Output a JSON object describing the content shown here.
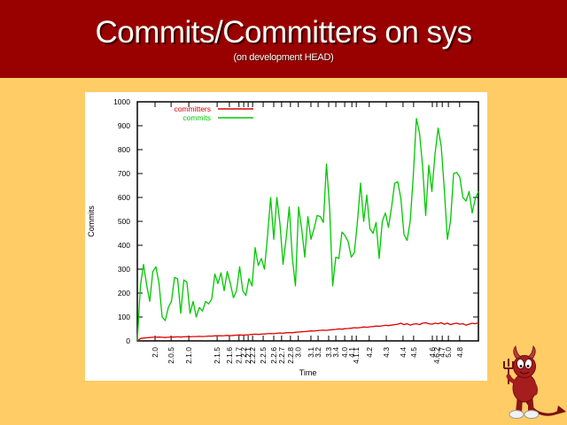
{
  "slide": {
    "title": "Commits/Committers on sys",
    "subtitle": "(on development HEAD)",
    "colors": {
      "header_bg": "#990000",
      "slide_bg": "#FFCC66",
      "panel_bg": "#FFFFFF",
      "title_text": "#FFFDF5",
      "committers_line": "#DD0000",
      "commits_line": "#00C800",
      "mascot_red": "#A51D1D"
    }
  },
  "chart_data": {
    "type": "line",
    "title": "",
    "xlabel": "Time",
    "ylabel": "Commits",
    "ylim": [
      0,
      1000
    ],
    "grid": false,
    "legend_position": "top-left",
    "y_ticks": [
      0,
      100,
      200,
      300,
      400,
      500,
      600,
      700,
      800,
      900,
      1000
    ],
    "x_ticks": [
      {
        "label": "2.0",
        "pos": 0.052
      },
      {
        "label": "2.0.5",
        "pos": 0.099
      },
      {
        "label": "2.1.0",
        "pos": 0.151
      },
      {
        "label": "2.1.5",
        "pos": 0.234
      },
      {
        "label": "2.1.6",
        "pos": 0.27
      },
      {
        "label": "2.1.7",
        "pos": 0.298
      },
      {
        "label": "2.2",
        "pos": 0.312
      },
      {
        "label": "2.2.1",
        "pos": 0.325
      },
      {
        "label": "2.2.2",
        "pos": 0.338
      },
      {
        "label": "2.2.5",
        "pos": 0.369
      },
      {
        "label": "2.2.6",
        "pos": 0.4
      },
      {
        "label": "2.2.7",
        "pos": 0.423
      },
      {
        "label": "2.2.8",
        "pos": 0.449
      },
      {
        "label": "3.0",
        "pos": 0.472
      },
      {
        "label": "3.1",
        "pos": 0.509
      },
      {
        "label": "3.2",
        "pos": 0.53
      },
      {
        "label": "3.3",
        "pos": 0.561
      },
      {
        "label": "3.4",
        "pos": 0.582
      },
      {
        "label": "4.0",
        "pos": 0.608
      },
      {
        "label": "4.1",
        "pos": 0.629
      },
      {
        "label": "4.1.1",
        "pos": 0.642
      },
      {
        "label": "4.2",
        "pos": 0.68
      },
      {
        "label": "4.3",
        "pos": 0.73
      },
      {
        "label": "4.4",
        "pos": 0.779
      },
      {
        "label": "4.5",
        "pos": 0.81
      },
      {
        "label": "4.6",
        "pos": 0.865
      },
      {
        "label": "4.6.2",
        "pos": 0.878
      },
      {
        "label": "4.7",
        "pos": 0.894
      },
      {
        "label": "5.0",
        "pos": 0.912
      },
      {
        "label": "4.8",
        "pos": 0.945
      }
    ],
    "series": [
      {
        "name": "committers",
        "color": "#DD0000",
        "values": [
          0,
          10,
          12,
          13,
          14,
          15,
          15,
          16,
          15,
          14,
          15,
          16,
          16,
          17,
          16,
          17,
          18,
          17,
          18,
          18,
          19,
          18,
          19,
          20,
          20,
          21,
          22,
          21,
          22,
          23,
          22,
          23,
          24,
          25,
          24,
          25,
          26,
          27,
          28,
          27,
          28,
          29,
          30,
          31,
          30,
          32,
          33,
          32,
          34,
          35,
          34,
          36,
          37,
          38,
          39,
          40,
          42,
          41,
          43,
          44,
          45,
          44,
          46,
          47,
          48,
          50,
          49,
          51,
          52,
          53,
          55,
          54,
          56,
          58,
          57,
          59,
          60,
          62,
          61,
          63,
          65,
          64,
          66,
          68,
          70,
          74,
          68,
          72,
          66,
          70,
          72,
          68,
          74,
          76,
          72,
          70,
          74,
          72,
          76,
          70,
          74,
          68,
          72,
          74,
          70,
          72,
          66,
          70,
          74,
          72,
          76
        ]
      },
      {
        "name": "commits",
        "color": "#00C800",
        "values": [
          0,
          230,
          320,
          235,
          165,
          290,
          310,
          240,
          100,
          85,
          140,
          165,
          265,
          260,
          115,
          255,
          245,
          115,
          165,
          100,
          140,
          125,
          165,
          155,
          175,
          280,
          240,
          285,
          210,
          290,
          240,
          180,
          210,
          310,
          210,
          190,
          260,
          230,
          390,
          315,
          345,
          300,
          440,
          600,
          425,
          600,
          490,
          320,
          430,
          560,
          345,
          230,
          560,
          470,
          350,
          520,
          425,
          470,
          525,
          520,
          495,
          740,
          560,
          230,
          350,
          345,
          455,
          440,
          415,
          350,
          370,
          500,
          660,
          500,
          610,
          470,
          450,
          495,
          345,
          500,
          535,
          475,
          560,
          660,
          665,
          595,
          445,
          420,
          500,
          690,
          930,
          870,
          730,
          525,
          735,
          625,
          780,
          890,
          815,
          635,
          425,
          500,
          700,
          705,
          685,
          600,
          585,
          625,
          535,
          595,
          625
        ]
      }
    ]
  }
}
